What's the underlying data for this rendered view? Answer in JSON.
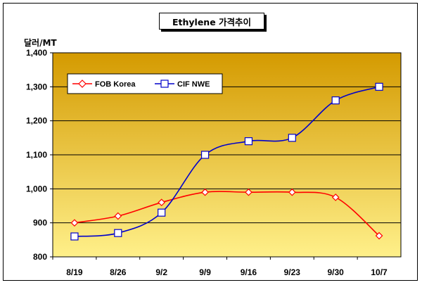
{
  "chart_data": {
    "type": "line",
    "title": "Ethylene 가격추이",
    "ylabel": "달러/MT",
    "xlabel": "",
    "categories": [
      "8/19",
      "8/26",
      "9/2",
      "9/9",
      "9/16",
      "9/23",
      "9/30",
      "10/7"
    ],
    "ylim": [
      800,
      1400
    ],
    "yticks": [
      "800",
      "900",
      "1,000",
      "1,100",
      "1,200",
      "1,300",
      "1,400"
    ],
    "grid": true,
    "legend_position": "top-left",
    "series": [
      {
        "name": "FOB Korea",
        "color": "#ff0000",
        "marker": "diamond",
        "values": [
          900,
          920,
          960,
          990,
          990,
          990,
          975,
          862
        ]
      },
      {
        "name": "CIF NWE",
        "color": "#0000cc",
        "marker": "square",
        "values": [
          860,
          870,
          930,
          1100,
          1140,
          1150,
          1260,
          1300
        ]
      }
    ],
    "background_colors": {
      "top": "#d49a00",
      "bottom": "#fff08a"
    }
  }
}
